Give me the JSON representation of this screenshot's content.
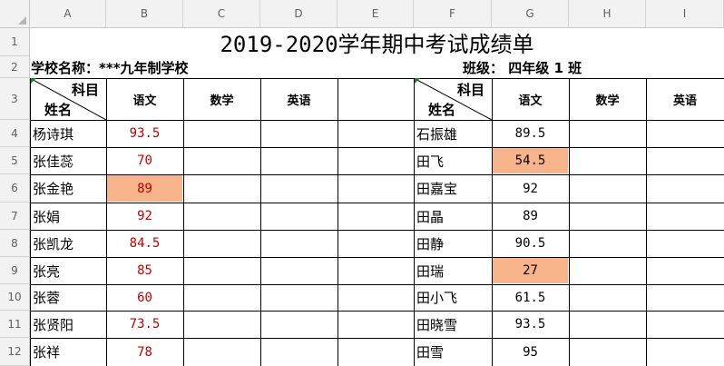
{
  "columns": [
    "A",
    "B",
    "C",
    "D",
    "E",
    "F",
    "G",
    "H",
    "I"
  ],
  "rows": [
    "1",
    "2",
    "3",
    "4",
    "5",
    "6",
    "7",
    "8",
    "9",
    "10",
    "11",
    "12"
  ],
  "title": "2019-2020学年期中考试成绩单",
  "school_label": "学校名称：***九年制学校",
  "class_label": "班级：  四年级 1 班",
  "header": {
    "subject": "科目",
    "name": "姓名",
    "chinese": "语文",
    "math": "数学",
    "english": "英语"
  },
  "left_students": [
    {
      "name": "杨诗琪",
      "score": "93.5"
    },
    {
      "name": "张佳蕊",
      "score": "70"
    },
    {
      "name": "张金艳",
      "score": "89"
    },
    {
      "name": "张娟",
      "score": "92"
    },
    {
      "name": "张凯龙",
      "score": "84.5"
    },
    {
      "name": "张亮",
      "score": "85"
    },
    {
      "name": "张蓉",
      "score": "60"
    },
    {
      "name": "张贤阳",
      "score": "73.5"
    },
    {
      "name": "张祥",
      "score": "78"
    }
  ],
  "right_students": [
    {
      "name": "石振雄",
      "score": "89.5"
    },
    {
      "name": "田飞",
      "score": "54.5"
    },
    {
      "name": "田嘉宝",
      "score": "92"
    },
    {
      "name": "田晶",
      "score": "89"
    },
    {
      "name": "田静",
      "score": "90.5"
    },
    {
      "name": "田瑞",
      "score": "27"
    },
    {
      "name": "田小飞",
      "score": "61.5"
    },
    {
      "name": "田晓雪",
      "score": "93.5"
    },
    {
      "name": "田雪",
      "score": "95"
    }
  ],
  "colors": {
    "highlight": "#f7b48a",
    "red_text": "#c00000",
    "header_bg": "#f2f2f2"
  }
}
